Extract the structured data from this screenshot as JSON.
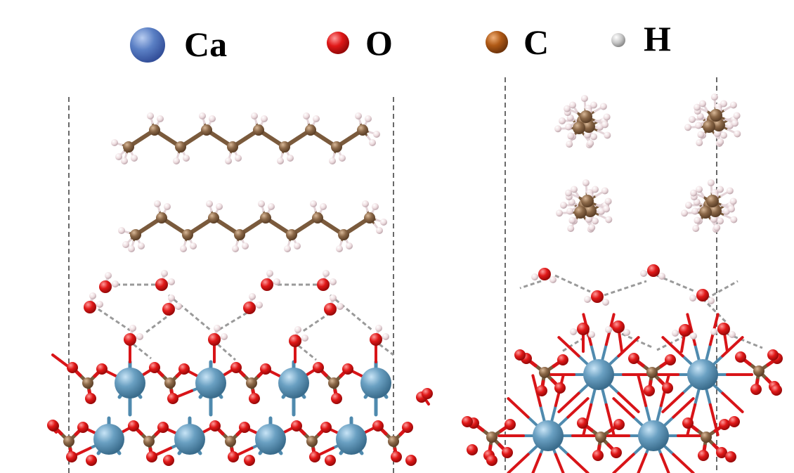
{
  "legend": {
    "items": [
      {
        "element": "Ca",
        "label": "Ca",
        "color": "#5a86c8",
        "highlight": "#aec6ee"
      },
      {
        "element": "O",
        "label": "O",
        "color": "#d41414",
        "highlight": "#ff9090"
      },
      {
        "element": "C",
        "label": "C",
        "color": "#a85a1c",
        "highlight": "#e0a070"
      },
      {
        "element": "H",
        "label": "H",
        "color": "#bdbdbd",
        "highlight": "#f4f4f4"
      }
    ]
  },
  "colors": {
    "ca_slab": "#5b8faf",
    "ca_slab_highlight": "#b8d8ee",
    "oxygen": "#d8141a",
    "carbon": "#8b6a4c",
    "hydrogen": "#e8d8dc",
    "hbond": "#9a9a9a",
    "boundary": "#444444"
  },
  "panels": [
    {
      "name": "left",
      "description_icon": "molecular-model-left"
    },
    {
      "name": "right",
      "description_icon": "molecular-model-right"
    }
  ]
}
